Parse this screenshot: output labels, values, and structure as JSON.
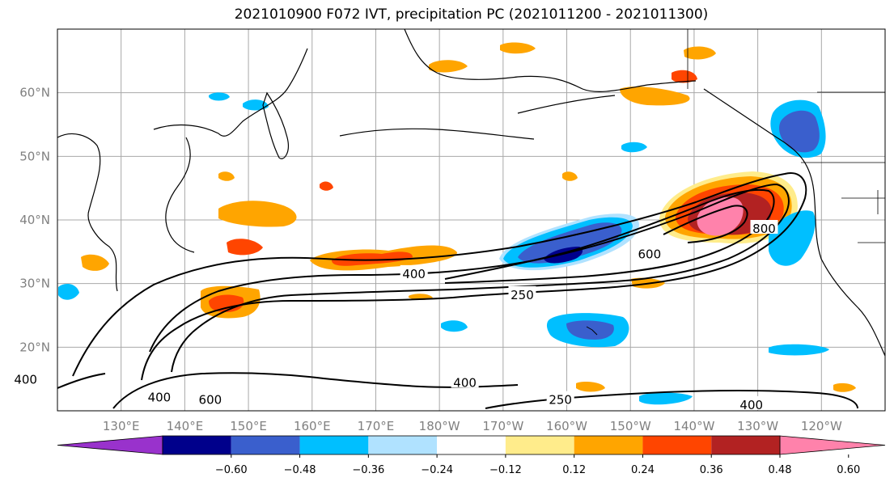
{
  "title": "2021010900 F072 IVT, precipitation PC (2021011200 - 2021011300)",
  "map": {
    "lat_ticks": [
      "60°N",
      "50°N",
      "40°N",
      "30°N",
      "20°N"
    ],
    "lon_ticks": [
      "130°E",
      "140°E",
      "150°E",
      "160°E",
      "170°E",
      "180°W",
      "170°W",
      "160°W",
      "150°W",
      "140°W",
      "130°W",
      "120°W"
    ],
    "contour_labels": [
      {
        "text": "400",
        "lon": 176,
        "lat": 31.5
      },
      {
        "text": "250",
        "lon": -167,
        "lat": 28.2
      },
      {
        "text": "600",
        "lon": -147,
        "lat": 34.6
      },
      {
        "text": "800",
        "lon": -129,
        "lat": 38.6
      },
      {
        "text": "400",
        "lon": -176,
        "lat": 14.4
      },
      {
        "text": "400",
        "lon": 136,
        "lat": 12.1
      },
      {
        "text": "600",
        "lon": 144,
        "lat": 11.7
      },
      {
        "text": "400",
        "lon": 115,
        "lat": 14.9
      },
      {
        "text": "250",
        "lon": -161,
        "lat": 11.7
      },
      {
        "text": "400",
        "lon": -131,
        "lat": 10.9
      }
    ]
  },
  "colorbar": {
    "ticks": [
      "−0.60",
      "−0.48",
      "−0.36",
      "−0.24",
      "−0.12",
      "0.12",
      "0.24",
      "0.36",
      "0.48",
      "0.60"
    ],
    "colors": [
      "#9932cc",
      "#00008b",
      "#3a5fcd",
      "#00bfff",
      "#b0e2ff",
      "#ffffff",
      "#ffec8b",
      "#ffa500",
      "#ff4500",
      "#b22222",
      "#ff82ab"
    ]
  }
}
